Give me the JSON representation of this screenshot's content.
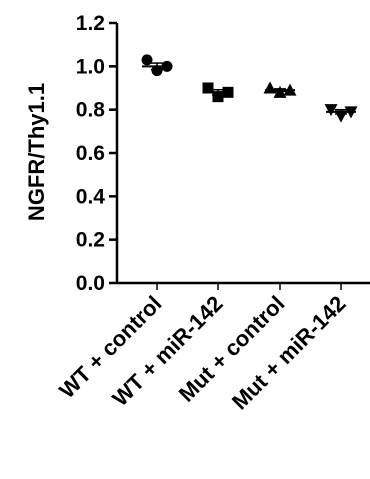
{
  "chart_data": {
    "type": "scatter",
    "ylabel": "NGFR/Thy1.1",
    "xlabel": "",
    "ylim": [
      0.0,
      1.2
    ],
    "yticks": [
      0.0,
      0.2,
      0.4,
      0.6,
      0.8,
      1.0,
      1.2
    ],
    "ytick_labels": [
      "0.0",
      "0.2",
      "0.4",
      "0.6",
      "0.8",
      "1.0",
      "1.2"
    ],
    "categories": [
      "WT + control",
      "WT + miR-142",
      "Mut + control",
      "Mut + miR-142"
    ],
    "series": [
      {
        "category": "WT + control",
        "marker": "circle",
        "points": [
          1.03,
          0.98,
          1.0
        ],
        "mean": 1.0,
        "error": 0.015
      },
      {
        "category": "WT + miR-142",
        "marker": "square",
        "points": [
          0.9,
          0.86,
          0.88
        ],
        "mean": 0.88,
        "error": 0.012
      },
      {
        "category": "Mut + control",
        "marker": "triangle-up",
        "points": [
          0.9,
          0.88,
          0.89
        ],
        "mean": 0.89,
        "error": 0.006
      },
      {
        "category": "Mut + miR-142",
        "marker": "triangle-down",
        "points": [
          0.8,
          0.77,
          0.79
        ],
        "mean": 0.79,
        "error": 0.01
      }
    ],
    "grid": false,
    "legend": "none",
    "colors": {
      "marker": "#000000",
      "axis": "#000000"
    }
  }
}
